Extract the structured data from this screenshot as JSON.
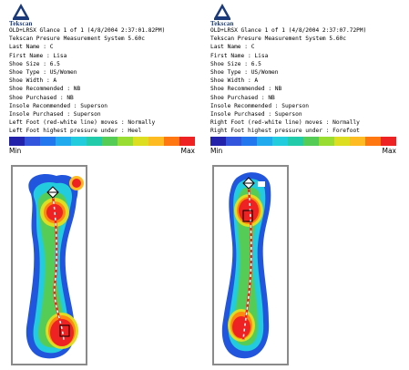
{
  "logo_text": "Tekscan",
  "scale": {
    "min_label": "Min",
    "max_label": "Max",
    "colors": [
      "#2222aa",
      "#3355dd",
      "#2277ee",
      "#22aaee",
      "#22ccdd",
      "#22ccaa",
      "#55cc55",
      "#99dd33",
      "#dddd22",
      "#ffbb22",
      "#ff7711",
      "#ee2222"
    ]
  },
  "left": {
    "lines": [
      "OLD+LRSX Glance 1 of 1 (4/8/2004 2:37:01.82PM)",
      "Tekscan Presure Measurement System 5.60c",
      "Last Name : C",
      "First Name : Lisa",
      "Shoe Size : 6.5",
      "Shoe Type : US/Women",
      "Shoe Width : A",
      "Shoe Recommended : NB",
      "Shoe Purchased : NB",
      "Insole Recommended : Superson",
      "Insole Purchased : Superson",
      "Left Foot (red-white line) moves : Normally",
      "Left Foot highest pressure under : Heel"
    ]
  },
  "right": {
    "lines": [
      "OLD+LRSX Glance 1 of 1 (4/8/2004 2:37:07.72PM)",
      "Tekscan Presure Measurement System 5.60c",
      "Last Name : C",
      "First Name : Lisa",
      "Shoe Size : 6.5",
      "Shoe Type : US/Women",
      "Shoe Width : A",
      "Shoe Recommended : NB",
      "Shoe Purchased : NB",
      "Insole Recommended : Superson",
      "Insole Purchased : Superson",
      "Right Foot (red-white line) moves : Normally",
      "Right Foot highest pressure under : Forefoot"
    ]
  }
}
